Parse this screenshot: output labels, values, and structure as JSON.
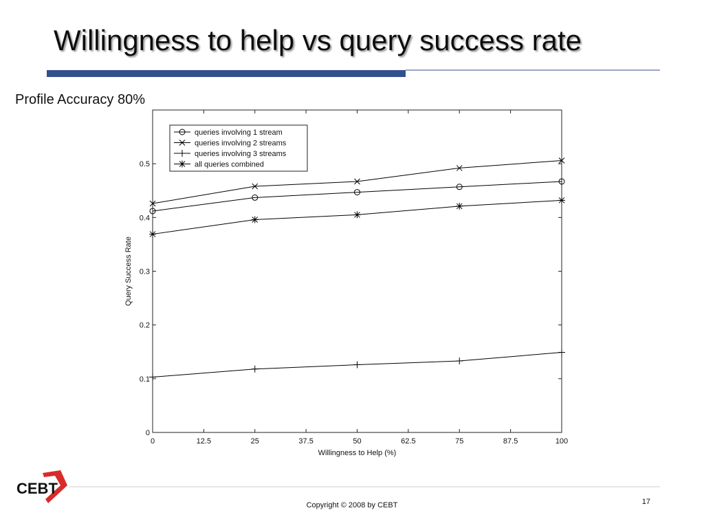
{
  "title": "Willingness to help vs query success rate",
  "subtitle": "Profile Accuracy 80%",
  "logo": "CEBT",
  "footer": "Copyright © 2008 by CEBT",
  "page_number": "17",
  "chart_data": {
    "type": "line",
    "xlabel": "Willingness to Help (%)",
    "ylabel": "Query Success Rate",
    "x": [
      0,
      25,
      50,
      75,
      100
    ],
    "series": [
      {
        "name": "queries involving 1 stream",
        "color": "#000000",
        "marker": "o",
        "values": [
          0.412,
          0.437,
          0.447,
          0.457,
          0.467
        ]
      },
      {
        "name": "queries involving 2 streams",
        "color": "#000000",
        "marker": "x",
        "values": [
          0.426,
          0.458,
          0.467,
          0.492,
          0.506
        ]
      },
      {
        "name": "queries involving 3 streams",
        "color": "#000000",
        "marker": "+",
        "values": [
          0.103,
          0.118,
          0.126,
          0.133,
          0.149
        ]
      },
      {
        "name": "all queries combined",
        "color": "#000000",
        "marker": "*",
        "values": [
          0.369,
          0.396,
          0.405,
          0.421,
          0.432
        ]
      }
    ],
    "xlim": [
      0,
      100
    ],
    "xticks": [
      0,
      12.5,
      25,
      37.5,
      50,
      62.5,
      75,
      87.5,
      100
    ],
    "ylim": [
      0,
      0.6
    ],
    "yticks": [
      0,
      0.1,
      0.2,
      0.3,
      0.4,
      0.5
    ],
    "legend": "upper left",
    "grid": false
  }
}
